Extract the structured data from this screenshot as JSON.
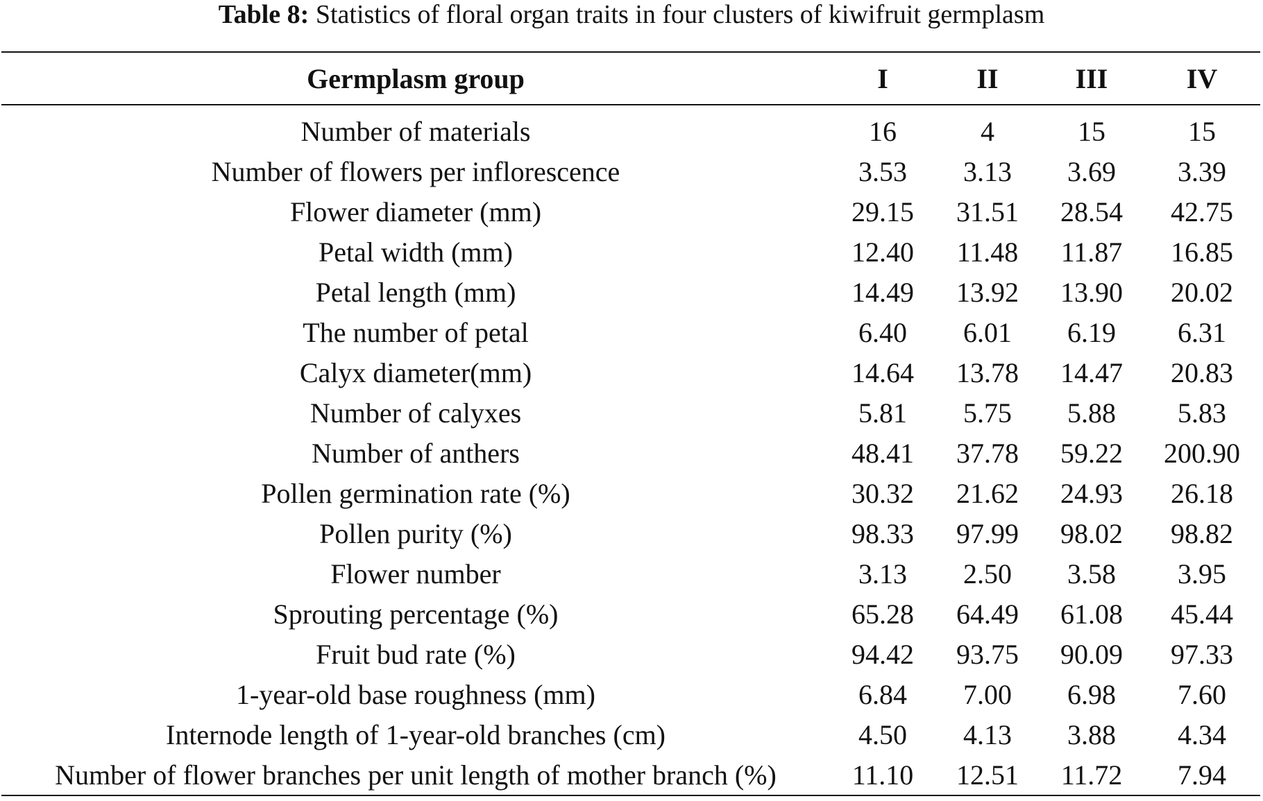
{
  "caption": {
    "label": "Table 8:",
    "text": "Statistics of floral organ traits in four clusters of kiwifruit germplasm"
  },
  "table": {
    "headers": [
      "Germplasm group",
      "I",
      "II",
      "III",
      "IV"
    ],
    "rows": [
      {
        "trait": "Number of materials",
        "values": [
          "16",
          "4",
          "15",
          "15"
        ]
      },
      {
        "trait": "Number of flowers per inflorescence",
        "values": [
          "3.53",
          "3.13",
          "3.69",
          "3.39"
        ]
      },
      {
        "trait": "Flower diameter (mm)",
        "values": [
          "29.15",
          "31.51",
          "28.54",
          "42.75"
        ]
      },
      {
        "trait": "Petal width (mm)",
        "values": [
          "12.40",
          "11.48",
          "11.87",
          "16.85"
        ]
      },
      {
        "trait": "Petal length (mm)",
        "values": [
          "14.49",
          "13.92",
          "13.90",
          "20.02"
        ]
      },
      {
        "trait": "The number of petal",
        "values": [
          "6.40",
          "6.01",
          "6.19",
          "6.31"
        ]
      },
      {
        "trait": "Calyx diameter(mm)",
        "values": [
          "14.64",
          "13.78",
          "14.47",
          "20.83"
        ]
      },
      {
        "trait": "Number of calyxes",
        "values": [
          "5.81",
          "5.75",
          "5.88",
          "5.83"
        ]
      },
      {
        "trait": "Number of anthers",
        "values": [
          "48.41",
          "37.78",
          "59.22",
          "200.90"
        ]
      },
      {
        "trait": "Pollen germination rate (%)",
        "values": [
          "30.32",
          "21.62",
          "24.93",
          "26.18"
        ]
      },
      {
        "trait": "Pollen purity (%)",
        "values": [
          "98.33",
          "97.99",
          "98.02",
          "98.82"
        ]
      },
      {
        "trait": "Flower number",
        "values": [
          "3.13",
          "2.50",
          "3.58",
          "3.95"
        ]
      },
      {
        "trait": "Sprouting percentage (%)",
        "values": [
          "65.28",
          "64.49",
          "61.08",
          "45.44"
        ]
      },
      {
        "trait": "Fruit bud rate (%)",
        "values": [
          "94.42",
          "93.75",
          "90.09",
          "97.33"
        ]
      },
      {
        "trait": "1-year-old base roughness (mm)",
        "values": [
          "6.84",
          "7.00",
          "6.98",
          "7.60"
        ]
      },
      {
        "trait": "Internode length of 1-year-old branches (cm)",
        "values": [
          "4.50",
          "4.13",
          "3.88",
          "4.34"
        ]
      },
      {
        "trait": "Number of flower branches per unit length of mother branch (%)",
        "values": [
          "11.10",
          "12.51",
          "11.72",
          "7.94"
        ]
      }
    ]
  }
}
